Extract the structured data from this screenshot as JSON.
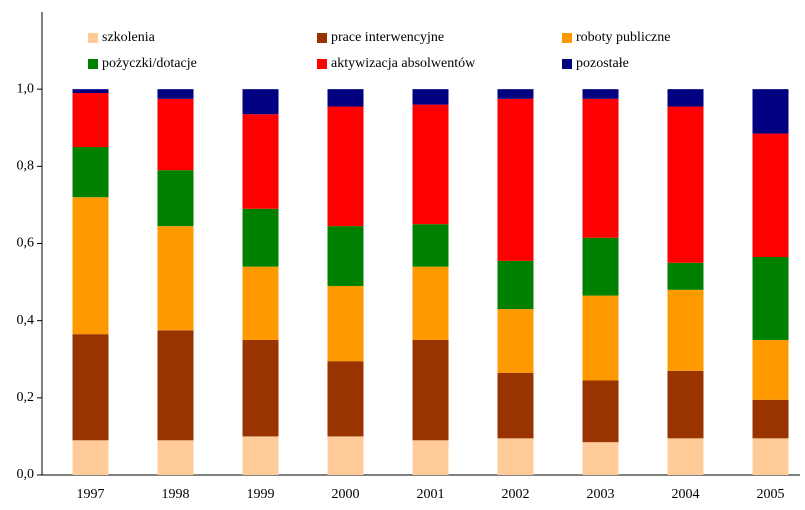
{
  "chart_data": {
    "type": "stacked_bar",
    "categories": [
      "1997",
      "1998",
      "1999",
      "2000",
      "2001",
      "2002",
      "2003",
      "2004",
      "2005"
    ],
    "series": [
      {
        "name": "szkolenia",
        "color": "#ffcc99",
        "values": [
          0.09,
          0.09,
          0.1,
          0.1,
          0.09,
          0.095,
          0.085,
          0.095,
          0.095
        ]
      },
      {
        "name": "prace interwencyjne",
        "color": "#993300",
        "values": [
          0.275,
          0.285,
          0.25,
          0.195,
          0.26,
          0.17,
          0.16,
          0.175,
          0.1
        ]
      },
      {
        "name": "roboty publiczne",
        "color": "#ff9900",
        "values": [
          0.355,
          0.27,
          0.19,
          0.195,
          0.19,
          0.165,
          0.22,
          0.21,
          0.155
        ]
      },
      {
        "name": "pożyczki/dotacje",
        "color": "#008000",
        "values": [
          0.13,
          0.145,
          0.15,
          0.155,
          0.11,
          0.125,
          0.15,
          0.07,
          0.215
        ]
      },
      {
        "name": "aktywizacja absolwentów",
        "color": "#ff0000",
        "values": [
          0.14,
          0.185,
          0.245,
          0.31,
          0.31,
          0.42,
          0.36,
          0.405,
          0.32
        ]
      },
      {
        "name": "pozostałe",
        "color": "#000080",
        "values": [
          0.01,
          0.025,
          0.065,
          0.045,
          0.04,
          0.025,
          0.025,
          0.045,
          0.115
        ]
      }
    ],
    "ylim": [
      0,
      1.2
    ],
    "yticks": [
      {
        "value": 0,
        "label": "0,0"
      },
      {
        "value": 0.2,
        "label": "0,2"
      },
      {
        "value": 0.4,
        "label": "0,4"
      },
      {
        "value": 0.6,
        "label": "0,6"
      },
      {
        "value": 0.8,
        "label": "0,8"
      },
      {
        "value": 1.0,
        "label": "1,0"
      }
    ],
    "legend": "top",
    "grid": false
  }
}
